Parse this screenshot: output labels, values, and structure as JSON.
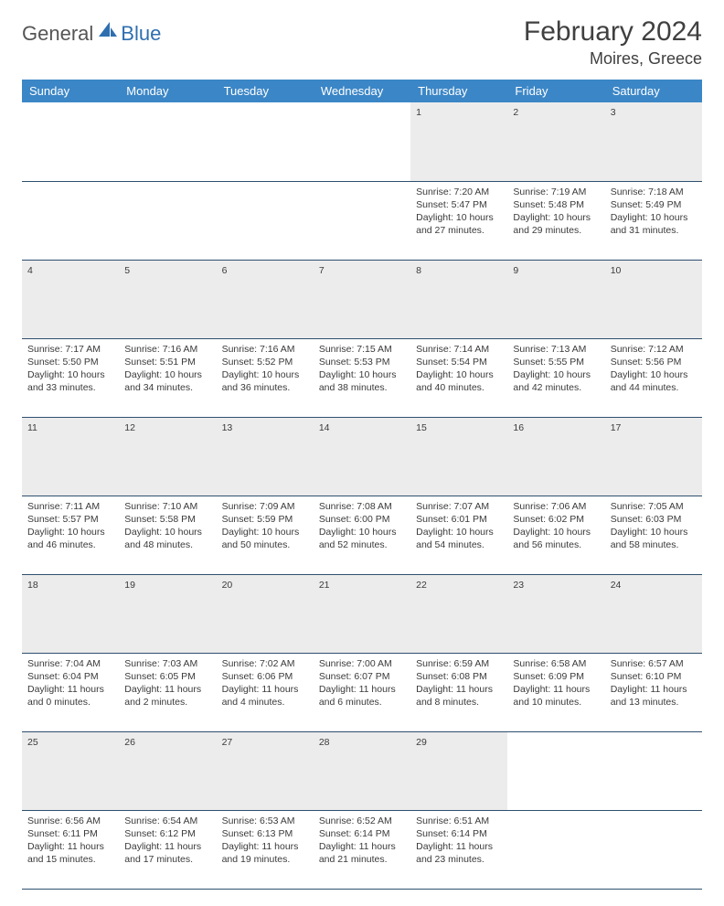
{
  "logo": {
    "general": "General",
    "blue": "Blue"
  },
  "title": "February 2024",
  "subtitle": "Moires, Greece",
  "colors": {
    "header_bg": "#3b86c6",
    "header_text": "#ffffff",
    "daynum_bg": "#ececec",
    "border": "#2f4f6f",
    "title_color": "#404040",
    "logo_blue": "#2f6fb0",
    "logo_gray": "#555555"
  },
  "daynames": [
    "Sunday",
    "Monday",
    "Tuesday",
    "Wednesday",
    "Thursday",
    "Friday",
    "Saturday"
  ],
  "weeks": [
    {
      "nums": [
        "",
        "",
        "",
        "",
        "1",
        "2",
        "3"
      ],
      "cells": [
        null,
        null,
        null,
        null,
        {
          "sunrise": "7:20 AM",
          "sunset": "5:47 PM",
          "daylight": "10 hours and 27 minutes."
        },
        {
          "sunrise": "7:19 AM",
          "sunset": "5:48 PM",
          "daylight": "10 hours and 29 minutes."
        },
        {
          "sunrise": "7:18 AM",
          "sunset": "5:49 PM",
          "daylight": "10 hours and 31 minutes."
        }
      ]
    },
    {
      "nums": [
        "4",
        "5",
        "6",
        "7",
        "8",
        "9",
        "10"
      ],
      "cells": [
        {
          "sunrise": "7:17 AM",
          "sunset": "5:50 PM",
          "daylight": "10 hours and 33 minutes."
        },
        {
          "sunrise": "7:16 AM",
          "sunset": "5:51 PM",
          "daylight": "10 hours and 34 minutes."
        },
        {
          "sunrise": "7:16 AM",
          "sunset": "5:52 PM",
          "daylight": "10 hours and 36 minutes."
        },
        {
          "sunrise": "7:15 AM",
          "sunset": "5:53 PM",
          "daylight": "10 hours and 38 minutes."
        },
        {
          "sunrise": "7:14 AM",
          "sunset": "5:54 PM",
          "daylight": "10 hours and 40 minutes."
        },
        {
          "sunrise": "7:13 AM",
          "sunset": "5:55 PM",
          "daylight": "10 hours and 42 minutes."
        },
        {
          "sunrise": "7:12 AM",
          "sunset": "5:56 PM",
          "daylight": "10 hours and 44 minutes."
        }
      ]
    },
    {
      "nums": [
        "11",
        "12",
        "13",
        "14",
        "15",
        "16",
        "17"
      ],
      "cells": [
        {
          "sunrise": "7:11 AM",
          "sunset": "5:57 PM",
          "daylight": "10 hours and 46 minutes."
        },
        {
          "sunrise": "7:10 AM",
          "sunset": "5:58 PM",
          "daylight": "10 hours and 48 minutes."
        },
        {
          "sunrise": "7:09 AM",
          "sunset": "5:59 PM",
          "daylight": "10 hours and 50 minutes."
        },
        {
          "sunrise": "7:08 AM",
          "sunset": "6:00 PM",
          "daylight": "10 hours and 52 minutes."
        },
        {
          "sunrise": "7:07 AM",
          "sunset": "6:01 PM",
          "daylight": "10 hours and 54 minutes."
        },
        {
          "sunrise": "7:06 AM",
          "sunset": "6:02 PM",
          "daylight": "10 hours and 56 minutes."
        },
        {
          "sunrise": "7:05 AM",
          "sunset": "6:03 PM",
          "daylight": "10 hours and 58 minutes."
        }
      ]
    },
    {
      "nums": [
        "18",
        "19",
        "20",
        "21",
        "22",
        "23",
        "24"
      ],
      "cells": [
        {
          "sunrise": "7:04 AM",
          "sunset": "6:04 PM",
          "daylight": "11 hours and 0 minutes."
        },
        {
          "sunrise": "7:03 AM",
          "sunset": "6:05 PM",
          "daylight": "11 hours and 2 minutes."
        },
        {
          "sunrise": "7:02 AM",
          "sunset": "6:06 PM",
          "daylight": "11 hours and 4 minutes."
        },
        {
          "sunrise": "7:00 AM",
          "sunset": "6:07 PM",
          "daylight": "11 hours and 6 minutes."
        },
        {
          "sunrise": "6:59 AM",
          "sunset": "6:08 PM",
          "daylight": "11 hours and 8 minutes."
        },
        {
          "sunrise": "6:58 AM",
          "sunset": "6:09 PM",
          "daylight": "11 hours and 10 minutes."
        },
        {
          "sunrise": "6:57 AM",
          "sunset": "6:10 PM",
          "daylight": "11 hours and 13 minutes."
        }
      ]
    },
    {
      "nums": [
        "25",
        "26",
        "27",
        "28",
        "29",
        "",
        ""
      ],
      "cells": [
        {
          "sunrise": "6:56 AM",
          "sunset": "6:11 PM",
          "daylight": "11 hours and 15 minutes."
        },
        {
          "sunrise": "6:54 AM",
          "sunset": "6:12 PM",
          "daylight": "11 hours and 17 minutes."
        },
        {
          "sunrise": "6:53 AM",
          "sunset": "6:13 PM",
          "daylight": "11 hours and 19 minutes."
        },
        {
          "sunrise": "6:52 AM",
          "sunset": "6:14 PM",
          "daylight": "11 hours and 21 minutes."
        },
        {
          "sunrise": "6:51 AM",
          "sunset": "6:14 PM",
          "daylight": "11 hours and 23 minutes."
        },
        null,
        null
      ]
    }
  ],
  "labels": {
    "sunrise": "Sunrise:",
    "sunset": "Sunset:",
    "daylight": "Daylight:"
  }
}
